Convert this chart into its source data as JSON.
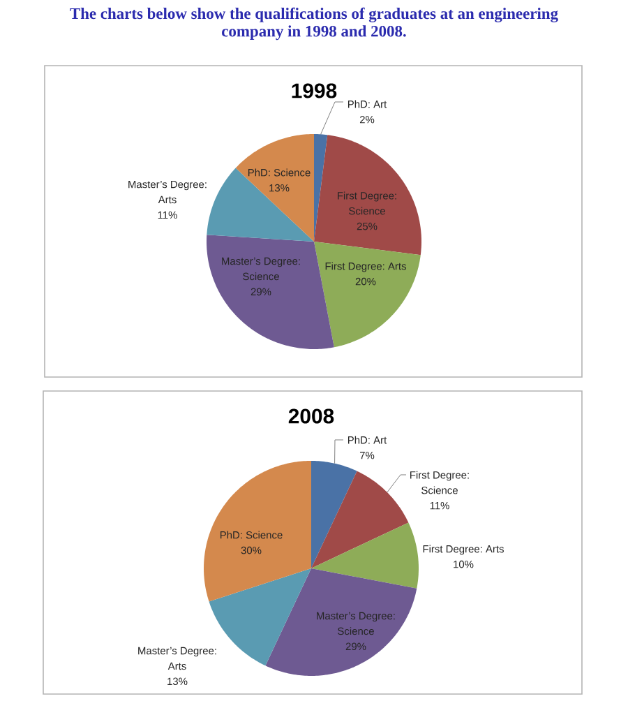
{
  "chart_data": [
    {
      "type": "other",
      "title": "The charts below show the qualifications of graduates at an engineering company in 1998 and 2008."
    },
    {
      "type": "pie",
      "title": "1998",
      "categories": [
        "PhD: Art",
        "First Degree: Science",
        "First Degree: Arts",
        "Master’s Degree: Science",
        "Master’s Degree: Arts",
        "PhD: Science"
      ],
      "values": [
        2,
        25,
        20,
        29,
        11,
        13
      ],
      "colors": [
        "#4a72a6",
        "#a04a48",
        "#8eac58",
        "#6e5a92",
        "#5a9bb2",
        "#d4894d"
      ],
      "value_labels": [
        "2%",
        "25%",
        "20%",
        "29%",
        "11%",
        "13%"
      ]
    },
    {
      "type": "pie",
      "title": "2008",
      "categories": [
        "PhD: Art",
        "First Degree: Science",
        "First Degree: Arts",
        "Master’s Degree: Science",
        "Master’s Degree: Arts",
        "PhD: Science"
      ],
      "values": [
        7,
        11,
        10,
        29,
        13,
        30
      ],
      "colors": [
        "#4a72a6",
        "#a04a48",
        "#8eac58",
        "#6e5a92",
        "#5a9bb2",
        "#d4894d"
      ],
      "value_labels": [
        "7%",
        "11%",
        "10%",
        "29%",
        "13%",
        "30%"
      ]
    }
  ]
}
